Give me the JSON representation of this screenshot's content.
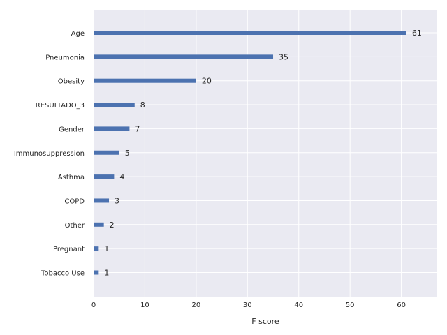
{
  "chart_data": {
    "type": "bar",
    "orientation": "horizontal",
    "title": "",
    "xlabel": "F score",
    "ylabel": "",
    "categories": [
      "Age",
      "Pneumonia",
      "Obesity",
      "RESULTADO_3",
      "Gender",
      "Immunosuppression",
      "Asthma",
      "COPD",
      "Other",
      "Pregnant",
      "Tobacco Use"
    ],
    "values": [
      61,
      35,
      20,
      8,
      7,
      5,
      4,
      3,
      2,
      1,
      1
    ],
    "data_labels": [
      "61",
      "35",
      "20",
      "8",
      "7",
      "5",
      "4",
      "3",
      "2",
      "1",
      "1"
    ],
    "xlim": [
      0,
      67
    ],
    "xticks": [
      0,
      10,
      20,
      30,
      40,
      50,
      60
    ],
    "xtick_labels": [
      "0",
      "10",
      "20",
      "30",
      "40",
      "50",
      "60"
    ],
    "grid": true,
    "legend": "none",
    "colors": {
      "bar": "#4c72b0",
      "plot_background": "#eaeaf2",
      "grid": "#ffffff",
      "text": "#262626"
    }
  }
}
